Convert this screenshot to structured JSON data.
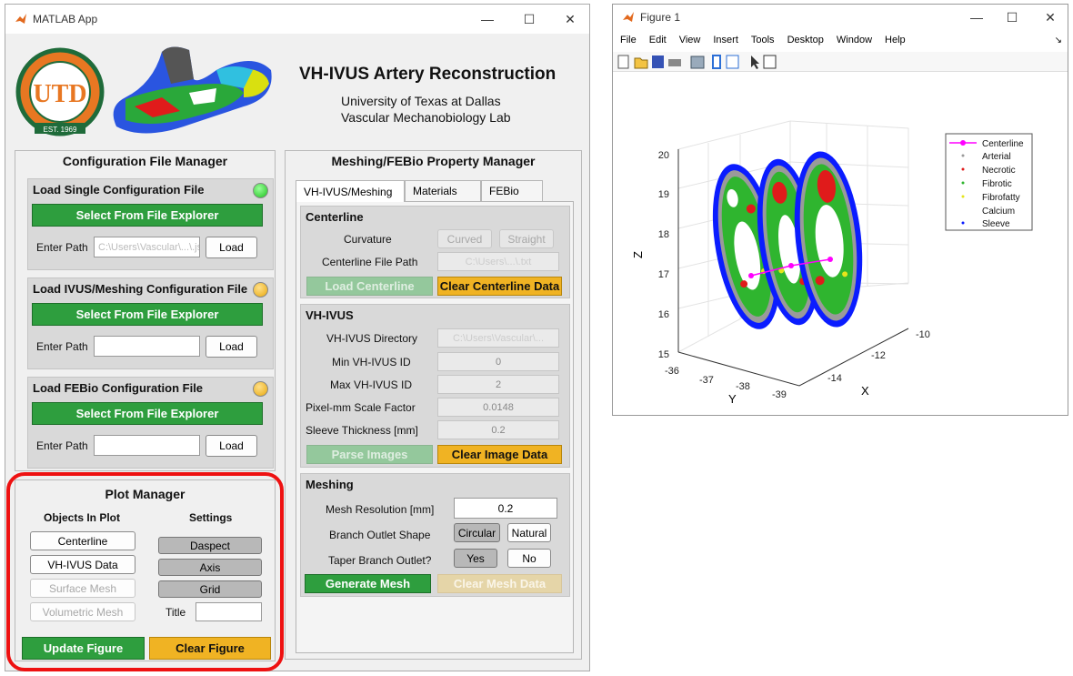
{
  "app": {
    "title": "MATLAB App",
    "heading": "VH-IVUS Artery Reconstruction",
    "subtitle1": "University of Texas at Dallas",
    "subtitle2": "Vascular Mechanobiology Lab",
    "logo_text": "THE UNIVERSITY OF TEXAS AT DALLAS",
    "logo_year": "EST. 1969"
  },
  "config": {
    "title": "Configuration File Manager",
    "single": {
      "title": "Load Single Configuration File",
      "select": "Select From File Explorer",
      "path_label": "Enter Path",
      "path_value": "C:\\Users\\Vascular\\...\\.json",
      "load": "Load",
      "status": "green"
    },
    "ivus": {
      "title": "Load IVUS/Meshing Configuration File",
      "select": "Select From File Explorer",
      "path_label": "Enter Path",
      "path_value": "",
      "load": "Load",
      "status": "orange"
    },
    "febio": {
      "title": "Load FEBio Configuration File",
      "select": "Select From File Explorer",
      "path_label": "Enter Path",
      "path_value": "",
      "load": "Load",
      "status": "orange"
    }
  },
  "plot": {
    "title": "Plot Manager",
    "objects_title": "Objects In Plot",
    "settings_title": "Settings",
    "centerline": "Centerline",
    "vhivus": "VH-IVUS Data",
    "surface": "Surface Mesh",
    "volumetric": "Volumetric Mesh",
    "daspect": "Daspect",
    "axis": "Axis",
    "grid": "Grid",
    "title_label": "Title",
    "title_value": "",
    "update": "Update Figure",
    "clear": "Clear Figure"
  },
  "mesh": {
    "title": "Meshing/FEBio Property Manager",
    "tabs": [
      "VH-IVUS/Meshing",
      "Materials",
      "FEBio"
    ],
    "centerline": {
      "title": "Centerline",
      "curvature_label": "Curvature",
      "curved": "Curved",
      "straight": "Straight",
      "path_label": "Centerline File Path",
      "path_value": "C:\\Users\\...\\.txt",
      "load": "Load Centerline",
      "clear": "Clear Centerline Data"
    },
    "vhivus": {
      "title": "VH-IVUS",
      "dir_label": "VH-IVUS Directory",
      "dir_value": "C:\\Users\\Vascular\\...",
      "min_label": "Min VH-IVUS ID",
      "min_value": "0",
      "max_label": "Max VH-IVUS ID",
      "max_value": "2",
      "scale_label": "Pixel-mm Scale Factor",
      "scale_value": "0.0148",
      "sleeve_label": "Sleeve Thickness [mm]",
      "sleeve_value": "0.2",
      "parse": "Parse Images",
      "clear": "Clear Image Data"
    },
    "meshing": {
      "title": "Meshing",
      "res_label": "Mesh Resolution [mm]",
      "res_value": "0.2",
      "shape_label": "Branch Outlet Shape",
      "circular": "Circular",
      "natural": "Natural",
      "taper_label": "Taper Branch Outlet?",
      "yes": "Yes",
      "no": "No",
      "generate": "Generate Mesh",
      "clear": "Clear Mesh Data"
    }
  },
  "figure": {
    "title": "Figure 1",
    "menu": [
      "File",
      "Edit",
      "View",
      "Insert",
      "Tools",
      "Desktop",
      "Window",
      "Help"
    ],
    "zlabel": "Z",
    "ylabel": "Y",
    "xlabel": "X",
    "zticks": [
      "20",
      "19",
      "18",
      "17",
      "16",
      "15"
    ],
    "yticks": [
      "-36",
      "-37",
      "-38",
      "-39"
    ],
    "xticks": [
      "-10",
      "-12",
      "-14"
    ],
    "legend": [
      "Centerline",
      "Arterial",
      "Necrotic",
      "Fibrotic",
      "Fibrofatty",
      "Calcium",
      "Sleeve"
    ]
  },
  "colors": {
    "green": "#2e9e3e",
    "orange": "#f0b323",
    "highlight": "#e11",
    "sleeve": "#0a1cff",
    "centerline": "#ff00ff"
  }
}
